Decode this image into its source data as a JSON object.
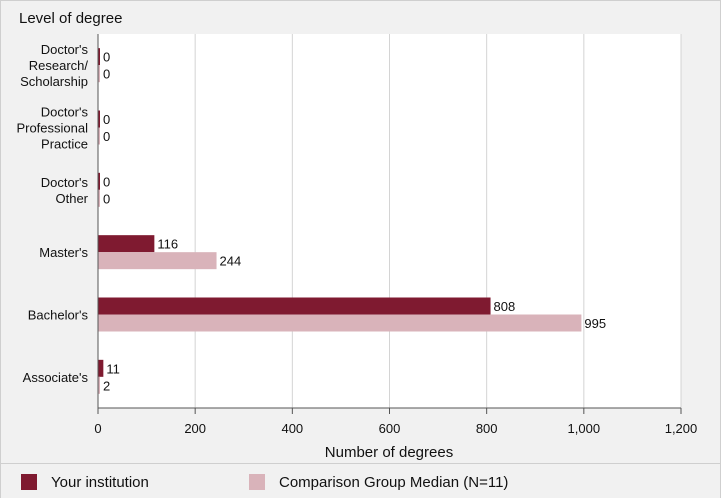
{
  "chart_data": {
    "type": "bar",
    "orientation": "horizontal",
    "ytitle": "Level of degree",
    "xlabel": "Number of degrees",
    "categories": [
      [
        "Doctor's",
        "Research/",
        "Scholarship"
      ],
      [
        "Doctor's",
        "Professional",
        "Practice"
      ],
      [
        "Doctor's",
        "Other"
      ],
      [
        "Master's"
      ],
      [
        "Bachelor's"
      ],
      [
        "Associate's"
      ]
    ],
    "series": [
      {
        "name": "Your institution",
        "color": "#7f1a30",
        "values": [
          0,
          0,
          0,
          116,
          808,
          11
        ]
      },
      {
        "name": "Comparison Group Median (N=11)",
        "color": "#d9b3ba",
        "values": [
          0,
          0,
          0,
          244,
          995,
          2
        ]
      }
    ],
    "xlim": [
      0,
      1200
    ],
    "xticks": [
      0,
      200,
      400,
      600,
      800,
      1000,
      1200
    ],
    "xtick_labels": [
      "0",
      "200",
      "400",
      "600",
      "800",
      "1,000",
      "1,200"
    ],
    "grid": true,
    "legend": "bottom"
  }
}
